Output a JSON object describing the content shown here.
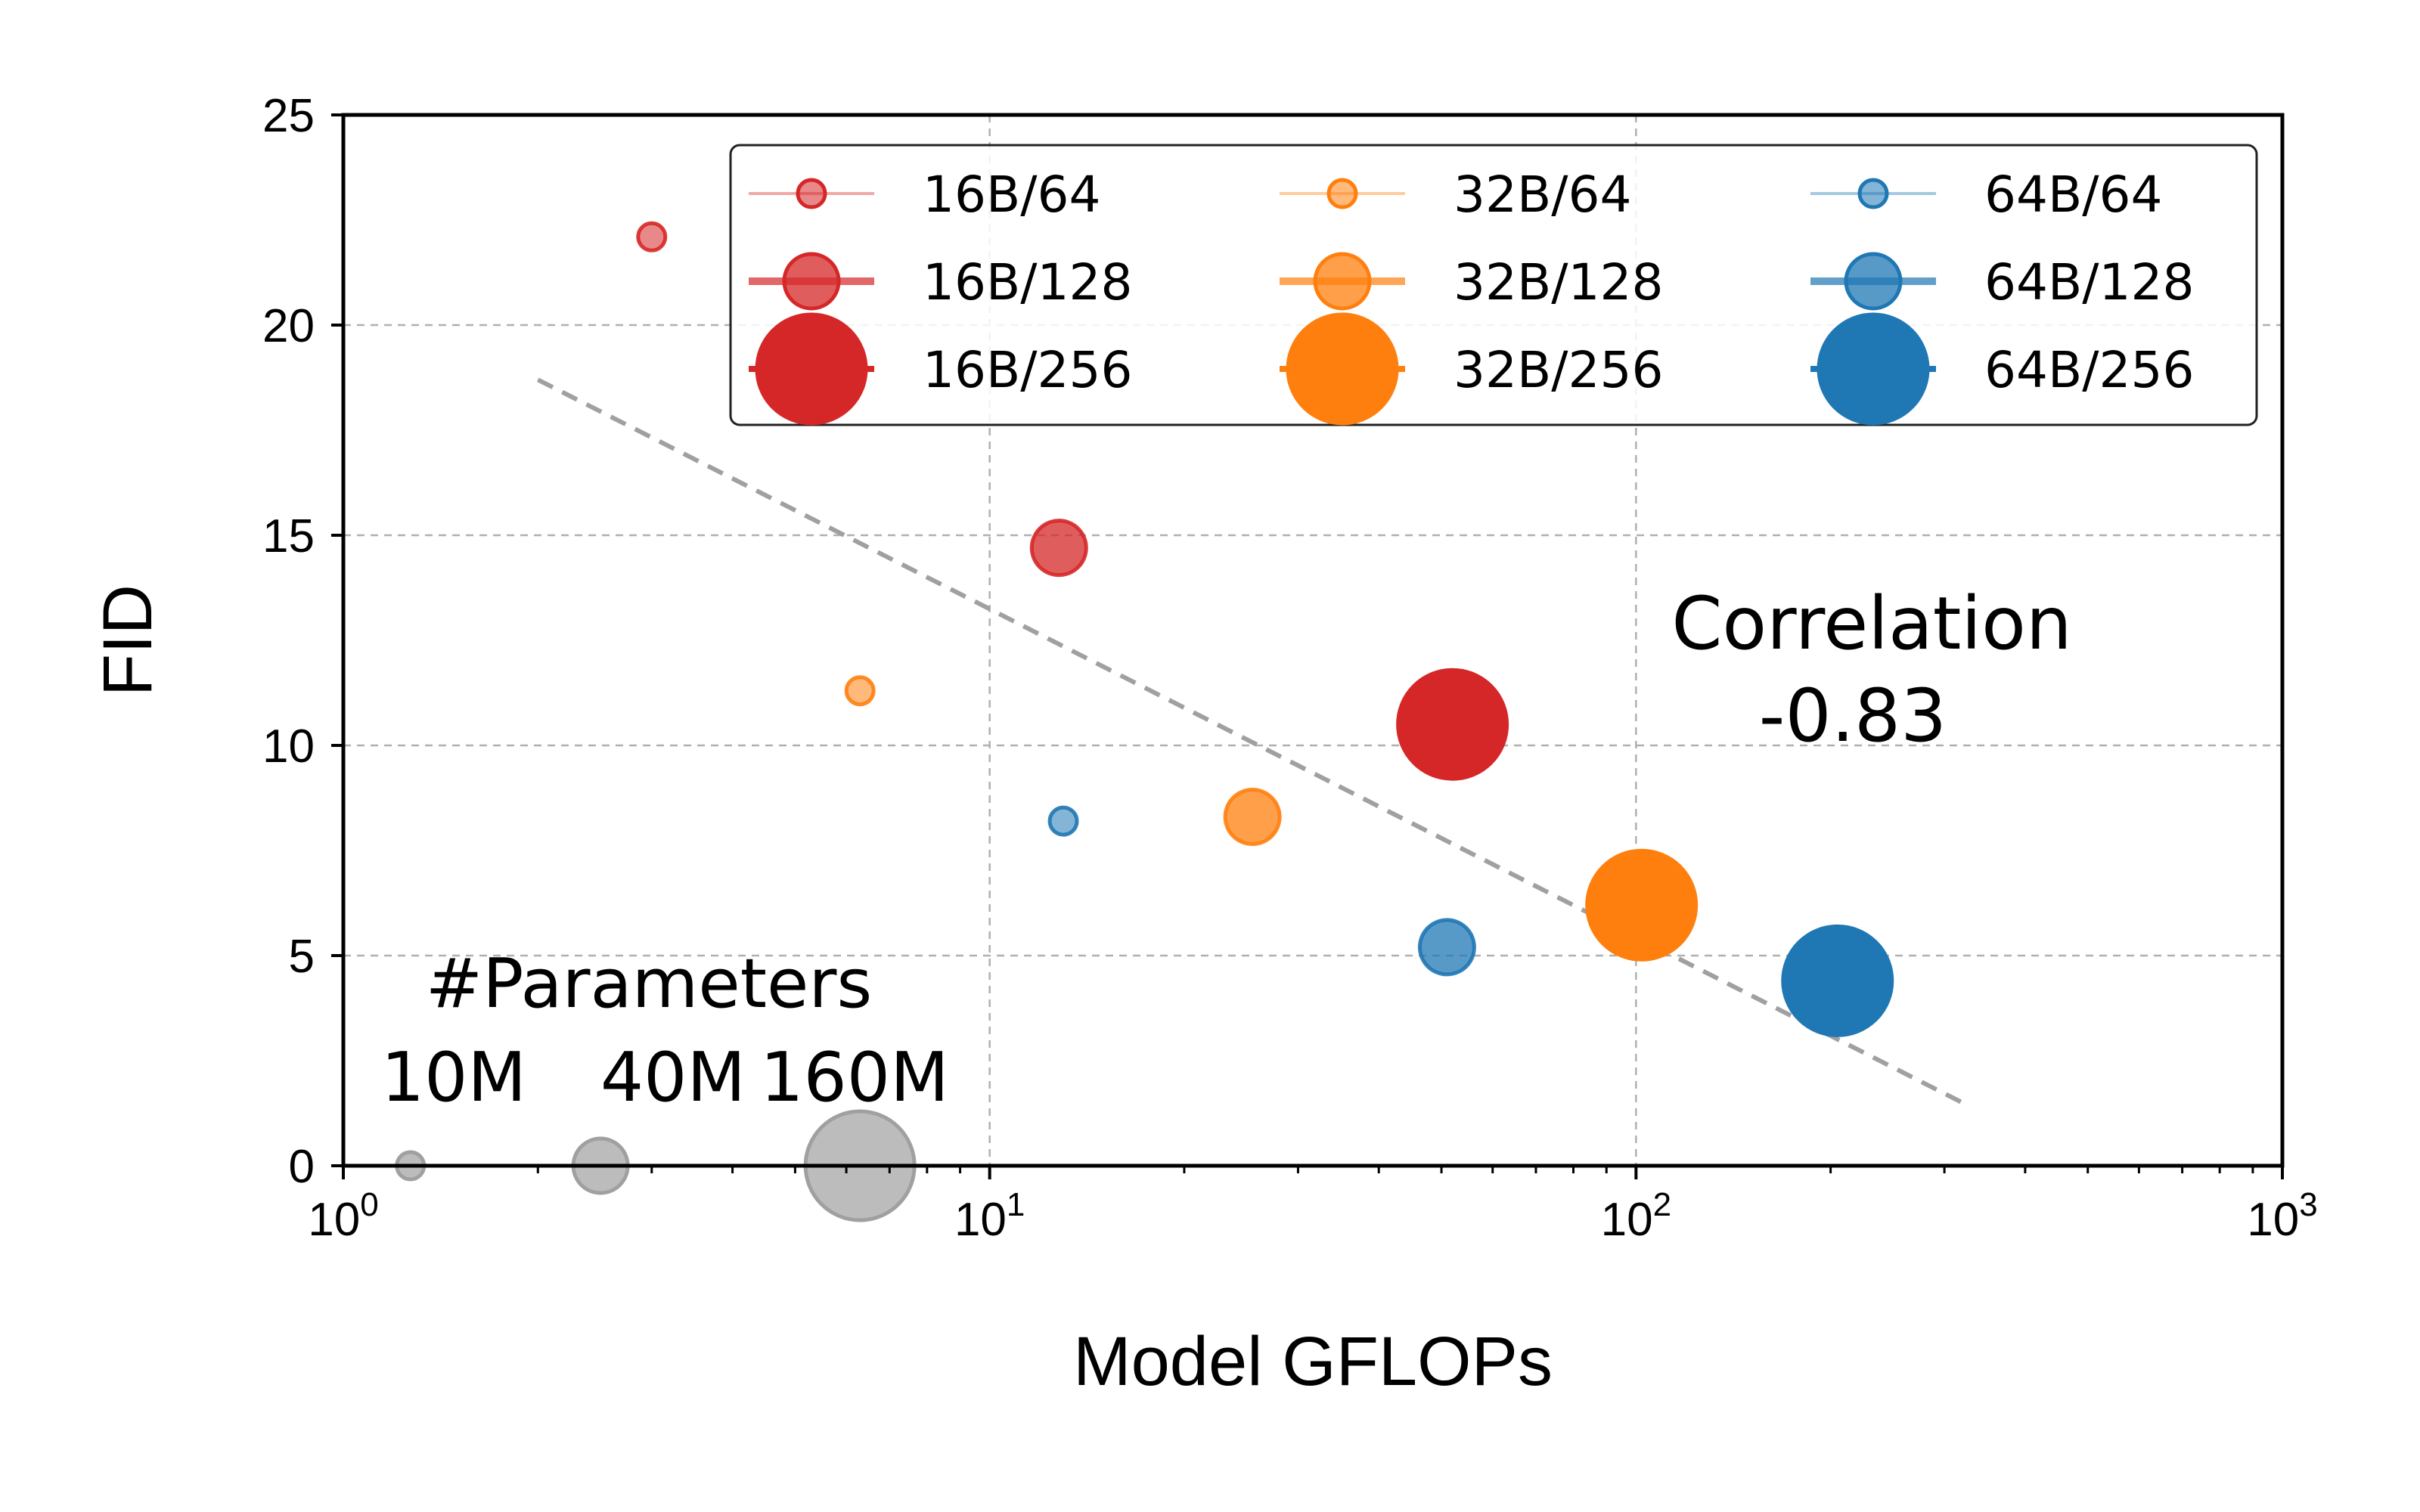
{
  "chart_data": {
    "type": "scatter",
    "xlabel": "Model GFLOPs",
    "ylabel": "FID",
    "xscale": "log",
    "xlim": [
      1,
      1000
    ],
    "ylim": [
      0,
      25
    ],
    "x_ticks": [
      {
        "value": 1,
        "base": "10",
        "exp": "0"
      },
      {
        "value": 10,
        "base": "10",
        "exp": "1"
      },
      {
        "value": 100,
        "base": "10",
        "exp": "2"
      },
      {
        "value": 1000,
        "base": "10",
        "exp": "3"
      }
    ],
    "y_ticks": [
      "0",
      "5",
      "10",
      "15",
      "20",
      "25"
    ],
    "grid": true,
    "legend_position": "top-right",
    "colors": {
      "red": "#d62728",
      "orange": "#ff7f0e",
      "blue": "#1f77b4",
      "gray": "#a0a0a0",
      "trend": "#a0a0a0"
    },
    "series": [
      {
        "name": "16B/64",
        "color": "#d62728",
        "alpha": 0.4,
        "params_m": 10,
        "points": [
          {
            "x": 3.0,
            "y": 22.1
          }
        ]
      },
      {
        "name": "16B/128",
        "color": "#d62728",
        "alpha": 0.7,
        "params_m": 40,
        "points": [
          {
            "x": 12.8,
            "y": 14.7
          }
        ]
      },
      {
        "name": "16B/256",
        "color": "#d62728",
        "alpha": 1.0,
        "params_m": 160,
        "points": [
          {
            "x": 52,
            "y": 10.5
          }
        ]
      },
      {
        "name": "32B/64",
        "color": "#ff7f0e",
        "alpha": 0.4,
        "params_m": 10,
        "points": [
          {
            "x": 6.3,
            "y": 11.3
          }
        ]
      },
      {
        "name": "32B/128",
        "color": "#ff7f0e",
        "alpha": 0.7,
        "params_m": 40,
        "points": [
          {
            "x": 25.5,
            "y": 8.3
          }
        ]
      },
      {
        "name": "32B/256",
        "color": "#ff7f0e",
        "alpha": 1.0,
        "params_m": 160,
        "points": [
          {
            "x": 102,
            "y": 6.2
          }
        ]
      },
      {
        "name": "64B/64",
        "color": "#1f77b4",
        "alpha": 0.4,
        "params_m": 10,
        "points": [
          {
            "x": 13.0,
            "y": 8.2
          }
        ]
      },
      {
        "name": "64B/128",
        "color": "#1f77b4",
        "alpha": 0.7,
        "params_m": 40,
        "points": [
          {
            "x": 51,
            "y": 5.2
          }
        ]
      },
      {
        "name": "64B/256",
        "color": "#1f77b4",
        "alpha": 1.0,
        "params_m": 160,
        "points": [
          {
            "x": 205,
            "y": 4.4
          }
        ]
      }
    ],
    "trendline": {
      "points": [
        {
          "x": 2.0,
          "y": 18.7
        },
        {
          "x": 320,
          "y": 1.5
        }
      ]
    },
    "annotation": {
      "title": "Correlation",
      "value": "-0.83"
    },
    "size_legend": {
      "title": "#Parameters",
      "items": [
        {
          "label": "10M",
          "params_m": 10,
          "x": 1.27,
          "y": 0
        },
        {
          "label": "40M",
          "params_m": 40,
          "x": 2.5,
          "y": 0
        },
        {
          "label": "160M",
          "params_m": 160,
          "x": 6.3,
          "y": 0
        }
      ]
    }
  }
}
